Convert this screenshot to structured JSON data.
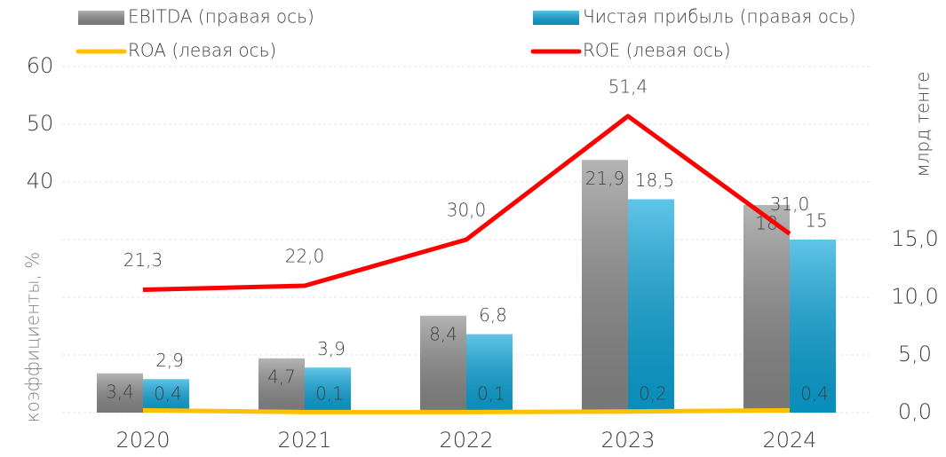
{
  "chart_data": {
    "type": "bar_line",
    "categories": [
      "2020",
      "2021",
      "2022",
      "2023",
      "2024"
    ],
    "ylabel": "коэффициенты, %",
    "y2label": "млрд тенге",
    "ylim": [
      0,
      60
    ],
    "yticks": [
      40,
      50,
      60
    ],
    "y2lim": [
      0,
      30
    ],
    "y2ticks": [
      {
        "value": 0,
        "label": "0,0"
      },
      {
        "value": 5,
        "label": "5,0"
      },
      {
        "value": 10,
        "label": "10,0"
      },
      {
        "value": 15,
        "label": "15,0"
      }
    ],
    "grid": true,
    "series": [
      {
        "name": "EBITDA (правая ось)",
        "kind": "bar",
        "axis": "y2",
        "color": "#8c8c8c",
        "values": [
          3.4,
          4.7,
          8.4,
          21.9,
          18
        ],
        "value_labels": [
          "3,4",
          "4,7",
          "8,4",
          "21,9",
          "18"
        ]
      },
      {
        "name": "Чистая прибыль (правая ось)",
        "kind": "bar",
        "axis": "y2",
        "color": "#0aa6dc",
        "values": [
          2.9,
          3.9,
          6.8,
          18.5,
          15
        ],
        "value_labels": [
          "2,9",
          "3,9",
          "6,8",
          "18,5",
          "15"
        ]
      },
      {
        "name": "ROA (левая ось)",
        "kind": "line",
        "color": "#ffc000",
        "values": [
          0.4,
          0.1,
          0.1,
          0.2,
          0.4
        ],
        "value_labels": [
          "0,4",
          "0,1",
          "0,1",
          "0,2",
          "0,4"
        ]
      },
      {
        "name": "ROE (левая ось)",
        "kind": "line",
        "color": "#ff0000",
        "values": [
          21.3,
          22.0,
          30.0,
          51.4,
          31.0
        ],
        "value_labels": [
          "21,3",
          "22,0",
          "30,0",
          "51,4",
          "31,0"
        ]
      }
    ]
  }
}
